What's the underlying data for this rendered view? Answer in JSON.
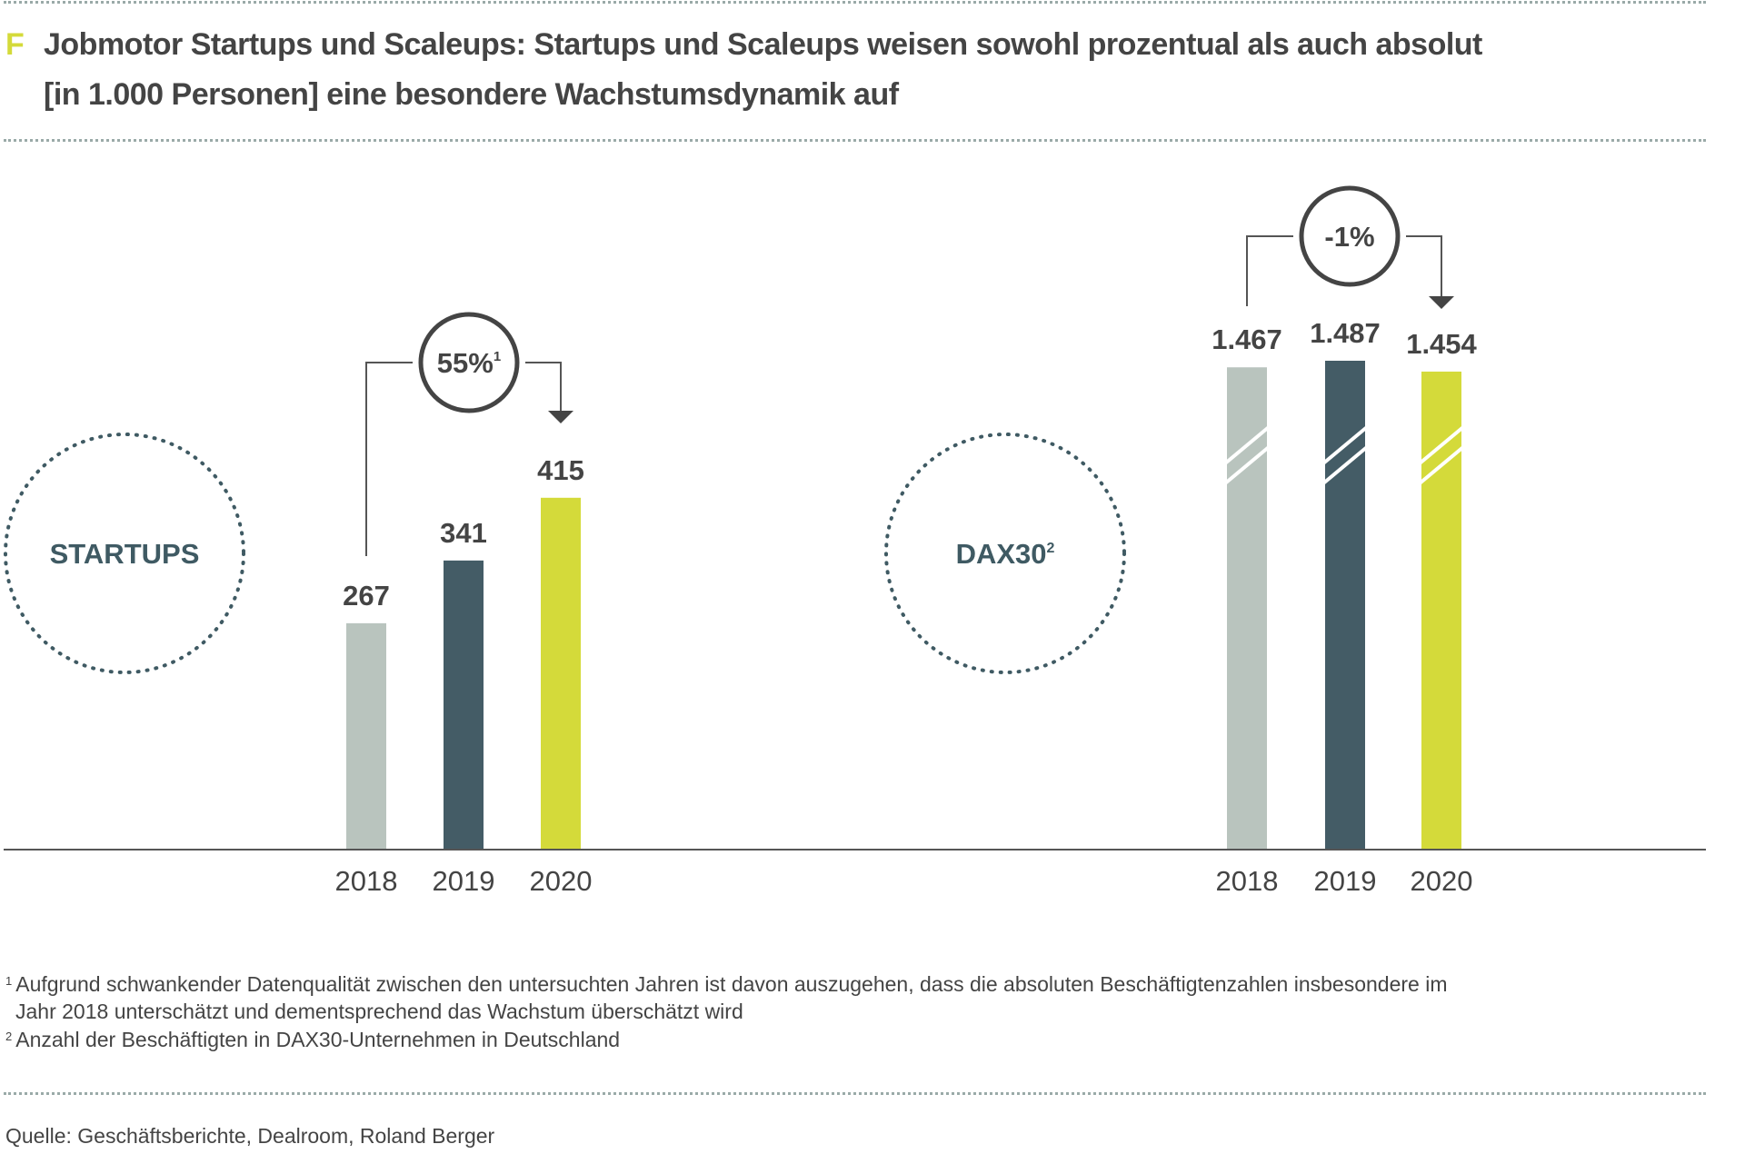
{
  "title": {
    "marker": "F",
    "line1": "Jobmotor Startups und Scaleups: Startups und Scaleups weisen sowohl prozentual als auch absolut",
    "line2": "[in 1.000 Personen] eine besondere Wachstumsdynamik auf"
  },
  "colors": {
    "y2018": "#b9c4be",
    "y2019": "#445c66",
    "y2020": "#d4da3a",
    "text": "#444444",
    "circle": "#3f5a63"
  },
  "chart_data": [
    {
      "type": "bar",
      "group_label": "STARTUPS",
      "categories": [
        "2018",
        "2019",
        "2020"
      ],
      "values": [
        267,
        341,
        415
      ],
      "value_labels": [
        "267",
        "341",
        "415"
      ],
      "growth_label": "55%",
      "growth_footnote": "1",
      "ylabel": "in 1.000 Personen"
    },
    {
      "type": "bar",
      "group_label": "DAX30",
      "group_footnote": "2",
      "categories": [
        "2018",
        "2019",
        "2020"
      ],
      "values": [
        1467,
        1487,
        1454
      ],
      "value_labels": [
        "1.467",
        "1.487",
        "1.454"
      ],
      "growth_label": "-1%",
      "broken_axis": true,
      "ylabel": "in 1.000 Personen"
    }
  ],
  "footnotes": [
    {
      "num": "1",
      "line1": "Aufgrund schwankender Datenqualität zwischen den untersuchten Jahren ist davon auszugehen, dass die absoluten Beschäftigtenzahlen insbesondere im",
      "line2": "Jahr 2018 unterschätzt und dementsprechend das Wachstum überschätzt wird"
    },
    {
      "num": "2",
      "line1": "Anzahl der Beschäftigten in DAX30-Unternehmen in Deutschland"
    }
  ],
  "source": "Quelle: Geschäftsberichte, Dealroom, Roland Berger"
}
